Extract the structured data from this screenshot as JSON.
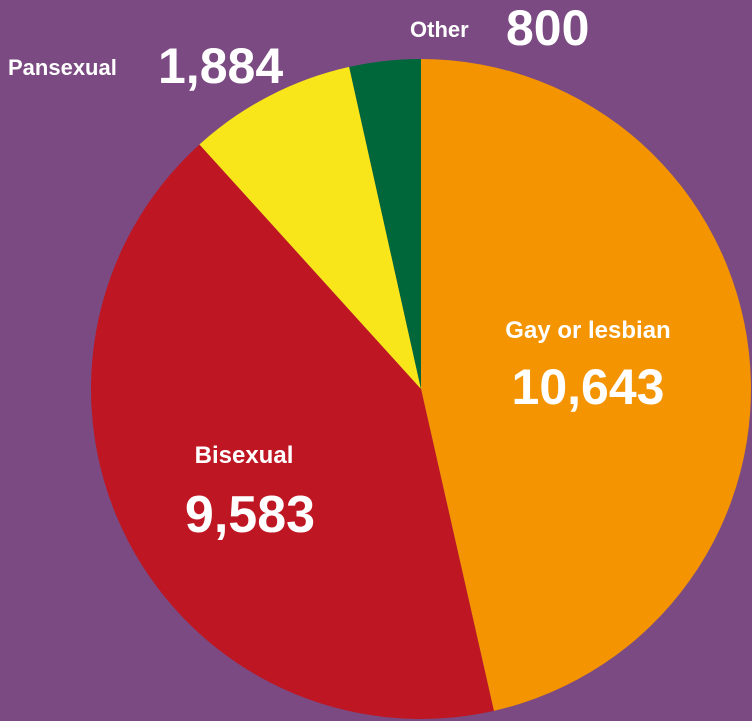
{
  "background_color": "#7b4a82",
  "chart_data": {
    "type": "pie",
    "title": "",
    "slices": [
      {
        "label": "Gay or lesbian",
        "value": 10643,
        "value_label": "10,643",
        "color": "#f39400"
      },
      {
        "label": "Bisexual",
        "value": 9583,
        "value_label": "9,583",
        "color": "#be1622"
      },
      {
        "label": "Pansexual",
        "value": 1884,
        "value_label": "1,884",
        "color": "#f8e61b"
      },
      {
        "label": "Other",
        "value": 800,
        "value_label": "800",
        "color": "#00673a"
      }
    ],
    "start": "12 o'clock",
    "direction": "clockwise",
    "legend": "none"
  }
}
